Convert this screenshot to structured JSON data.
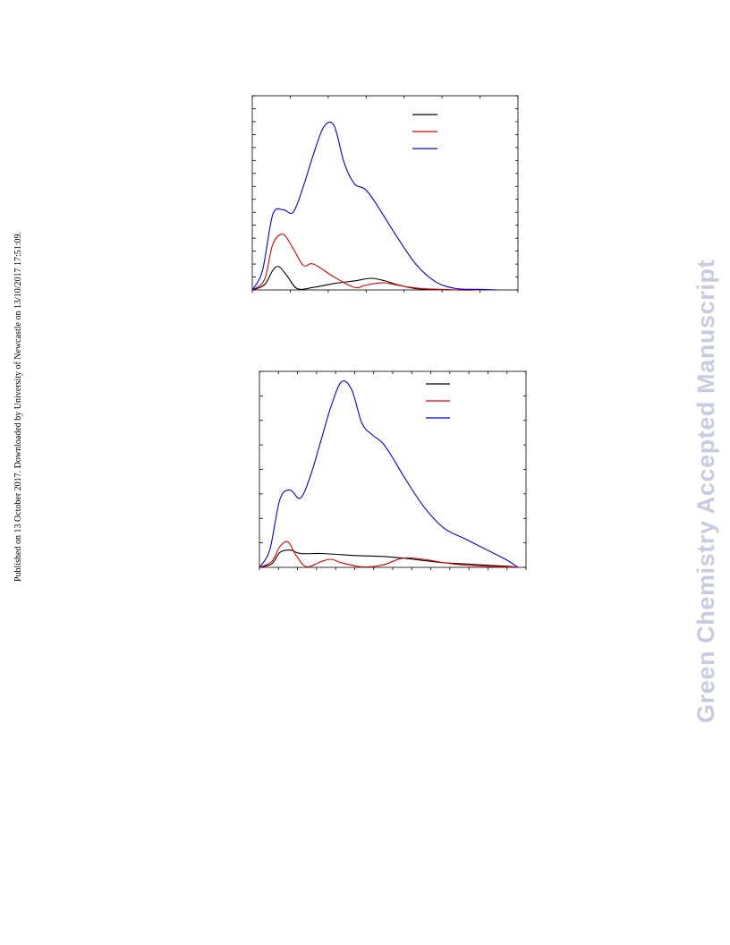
{
  "page": {
    "sidebar_note": "Published on 13 October 2017. Downloaded by University of Newcastle on 13/10/2017 17:51:09.",
    "watermark": "Green Chemistry Accepted Manuscript"
  },
  "colors": {
    "series_1": "#000000",
    "series_2": "#e00000",
    "series_3": "#0000ee"
  },
  "chart_data": [
    {
      "type": "line",
      "title": "",
      "xlabel": "",
      "ylabel": "",
      "xlim": [
        0,
        13
      ],
      "ylim": [
        0,
        15
      ],
      "grid": false,
      "legend": "top-right",
      "series": [
        {
          "color": "#000000",
          "x": [
            0,
            0.6,
            1,
            1.3,
            1.7,
            2.2,
            3,
            4,
            5,
            5.8,
            6.5,
            7,
            8,
            9,
            10,
            11,
            12
          ],
          "y": [
            0,
            0.4,
            1.5,
            1.8,
            1.1,
            0.1,
            0.2,
            0.5,
            0.7,
            0.9,
            0.7,
            0.45,
            0.1,
            0.05,
            0,
            0,
            0
          ]
        },
        {
          "color": "#e00000",
          "x": [
            0,
            0.6,
            1,
            1.5,
            2,
            2.5,
            3,
            4,
            5,
            5.5,
            6,
            6.5,
            7,
            8,
            9,
            10,
            11,
            12
          ],
          "y": [
            0,
            0.8,
            3.5,
            4.3,
            3.2,
            1.9,
            2.0,
            1.0,
            0.2,
            0.35,
            0.5,
            0.55,
            0.4,
            0.15,
            0.05,
            0,
            0,
            0
          ]
        },
        {
          "color": "#0000ee",
          "x": [
            0,
            0.5,
            1,
            1.5,
            2,
            2.5,
            3,
            3.5,
            4,
            4.5,
            5,
            5.5,
            6,
            7,
            8,
            9,
            10,
            11,
            12
          ],
          "y": [
            0,
            1.5,
            5.8,
            6.2,
            6.0,
            8.0,
            10.5,
            12.6,
            12.7,
            9.8,
            8.2,
            7.8,
            6.8,
            4.3,
            2.0,
            0.6,
            0.1,
            0.05,
            0
          ]
        }
      ]
    },
    {
      "type": "line",
      "title": "",
      "xlabel": "",
      "ylabel": "",
      "xlim": [
        0,
        13
      ],
      "ylim": [
        0,
        17
      ],
      "grid": false,
      "legend": "top-right",
      "series": [
        {
          "color": "#000000",
          "x": [
            0,
            0.6,
            1,
            1.5,
            2,
            3,
            4,
            5,
            6,
            7,
            8,
            9,
            10,
            11,
            12,
            12.6
          ],
          "y": [
            0,
            0.3,
            1.3,
            1.5,
            1.2,
            1.2,
            1.1,
            1.0,
            0.95,
            0.8,
            0.6,
            0.4,
            0.3,
            0.2,
            0.1,
            0
          ]
        },
        {
          "color": "#e00000",
          "x": [
            0,
            0.6,
            1,
            1.4,
            1.8,
            2.3,
            3,
            3.5,
            4,
            5,
            6,
            7,
            8,
            9,
            10,
            11,
            12,
            12.6
          ],
          "y": [
            0,
            0.5,
            1.8,
            2.2,
            1.0,
            0.05,
            0.5,
            0.7,
            0.4,
            0.05,
            0.2,
            0.8,
            0.7,
            0.4,
            0.2,
            0.1,
            0.05,
            0
          ]
        },
        {
          "color": "#0000ee",
          "x": [
            0,
            0.5,
            1,
            1.5,
            2,
            2.5,
            3,
            3.5,
            4,
            4.5,
            5,
            5.5,
            6,
            6.5,
            7,
            8,
            9,
            10,
            11,
            12,
            12.6
          ],
          "y": [
            0,
            1.5,
            5.9,
            6.7,
            6.0,
            8.0,
            11.0,
            14.0,
            16.1,
            15.4,
            12.5,
            11.5,
            10.8,
            9.5,
            8.0,
            5.3,
            3.4,
            2.5,
            1.6,
            0.7,
            0
          ]
        }
      ]
    }
  ]
}
